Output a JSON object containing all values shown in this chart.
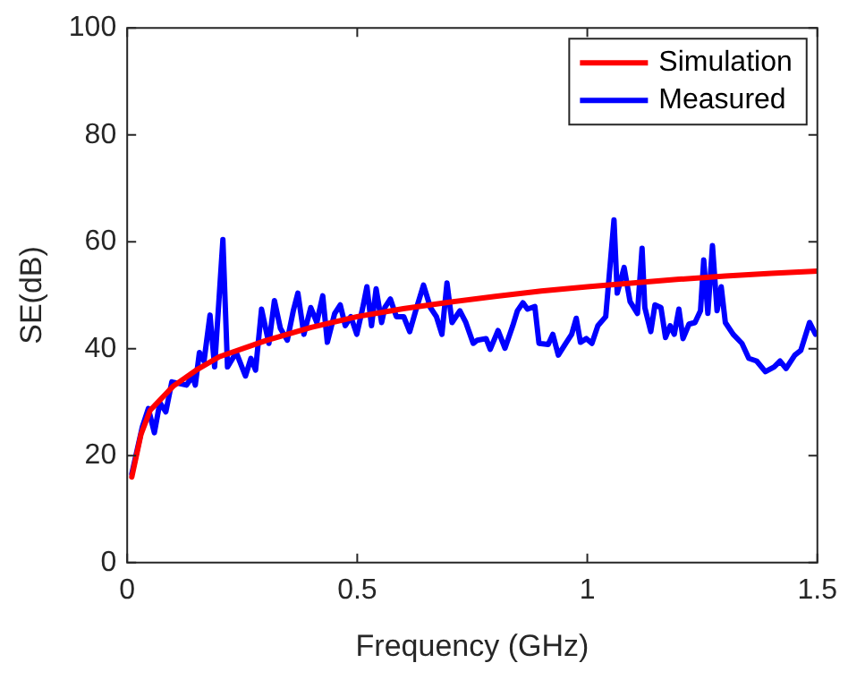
{
  "chart_data": {
    "type": "line",
    "xlabel": "Frequency (GHz)",
    "ylabel": "SE(dB)",
    "xlim": [
      0,
      1.5
    ],
    "xticks": [
      0,
      0.5,
      1,
      1.5
    ],
    "ylim": [
      0,
      100
    ],
    "yticks": [
      0,
      20,
      40,
      60,
      80,
      100
    ],
    "grid": false,
    "legend": "top right",
    "marker": "none",
    "line_style": "solid",
    "series": [
      {
        "name": "Simulation",
        "color": "#ff0000",
        "x": [
          0.01,
          0.03,
          0.05,
          0.1,
          0.15,
          0.2,
          0.3,
          0.4,
          0.5,
          0.6,
          0.7,
          0.8,
          0.9,
          1.0,
          1.1,
          1.2,
          1.3,
          1.4,
          1.5
        ],
        "values": [
          16,
          24,
          28.5,
          33,
          36,
          38.5,
          41.5,
          44,
          46,
          47.5,
          48.7,
          49.8,
          50.8,
          51.6,
          52.3,
          53,
          53.6,
          54.1,
          54.5
        ]
      },
      {
        "name": "Measured",
        "color": "#0000ff",
        "x": [
          0.01,
          0.033,
          0.046,
          0.059,
          0.071,
          0.084,
          0.097,
          0.129,
          0.142,
          0.148,
          0.157,
          0.167,
          0.18,
          0.19,
          0.208,
          0.218,
          0.237,
          0.257,
          0.269,
          0.279,
          0.292,
          0.308,
          0.32,
          0.333,
          0.348,
          0.361,
          0.371,
          0.384,
          0.399,
          0.412,
          0.425,
          0.435,
          0.451,
          0.463,
          0.474,
          0.486,
          0.499,
          0.512,
          0.521,
          0.531,
          0.541,
          0.553,
          0.56,
          0.572,
          0.585,
          0.601,
          0.614,
          0.627,
          0.644,
          0.659,
          0.672,
          0.684,
          0.695,
          0.706,
          0.723,
          0.736,
          0.752,
          0.761,
          0.78,
          0.789,
          0.806,
          0.821,
          0.838,
          0.848,
          0.86,
          0.87,
          0.886,
          0.895,
          0.915,
          0.925,
          0.937,
          0.953,
          0.966,
          0.976,
          0.985,
          0.998,
          1.01,
          1.023,
          1.04,
          1.058,
          1.065,
          1.08,
          1.093,
          1.109,
          1.119,
          1.125,
          1.138,
          1.147,
          1.16,
          1.17,
          1.18,
          1.189,
          1.199,
          1.208,
          1.221,
          1.234,
          1.246,
          1.253,
          1.262,
          1.272,
          1.282,
          1.291,
          1.3,
          1.317,
          1.336,
          1.351,
          1.368,
          1.387,
          1.406,
          1.419,
          1.432,
          1.451,
          1.464,
          1.483,
          1.496
        ],
        "values": [
          16.6,
          25.4,
          28.8,
          24.3,
          29.9,
          28.2,
          33.8,
          33.2,
          34.9,
          33.2,
          39.3,
          37.7,
          46.3,
          36.6,
          60.4,
          36.6,
          39.3,
          34.9,
          38.2,
          36,
          47.4,
          41,
          49,
          43.8,
          41.6,
          47.1,
          50.4,
          42.7,
          47.7,
          44.9,
          49.9,
          41.2,
          46.6,
          48.2,
          44.3,
          46,
          42.7,
          47.7,
          51.6,
          44.3,
          51.2,
          44.9,
          47.7,
          49.3,
          46,
          46,
          43.2,
          47.1,
          51.9,
          47.7,
          46,
          42.7,
          52.3,
          44.9,
          47.1,
          44.9,
          41,
          41.6,
          41.9,
          39.9,
          43.4,
          40.1,
          44.3,
          47.1,
          48.6,
          47.4,
          47.9,
          41,
          40.8,
          42.7,
          38.8,
          41,
          42.7,
          45.7,
          41.2,
          41.9,
          41,
          44.3,
          46,
          64.1,
          50.4,
          55.2,
          48.8,
          46.6,
          58.8,
          47.7,
          43.2,
          48.2,
          47.7,
          42.1,
          44.3,
          42.7,
          47.4,
          41.9,
          44.6,
          44.9,
          47.1,
          56.6,
          46.6,
          59.3,
          47.1,
          51.6,
          44.9,
          42.7,
          41,
          38.2,
          37.7,
          35.7,
          36.6,
          37.7,
          36.3,
          38.8,
          39.7,
          44.9,
          42.7
        ]
      }
    ]
  }
}
